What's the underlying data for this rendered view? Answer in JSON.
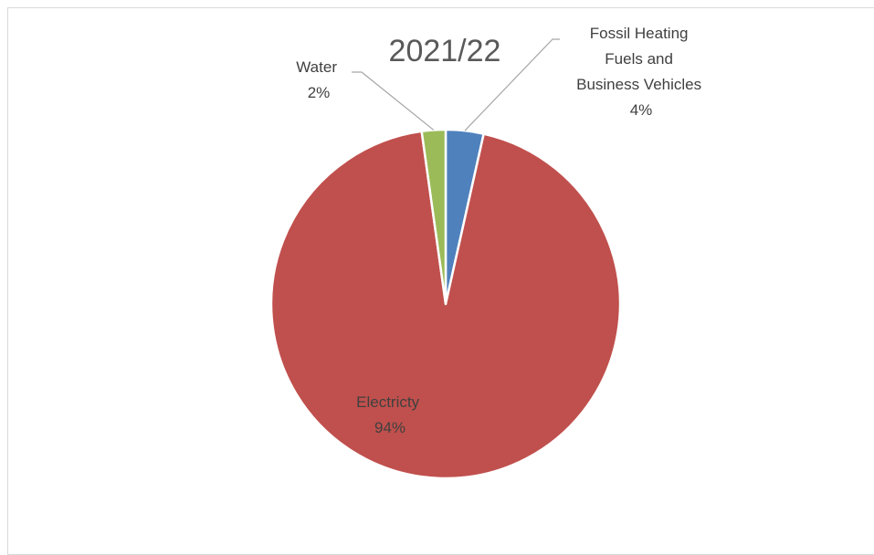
{
  "chart_data": {
    "type": "pie",
    "title": "2021/22",
    "slices": [
      {
        "label_lines": [
          "Fossil Heating",
          "Fuels and",
          "Business Vehicles"
        ],
        "value_text": "4%",
        "value": 3.5,
        "color": "#4F81BD"
      },
      {
        "label_lines": [
          "Electricty"
        ],
        "value_text": "94%",
        "value": 94.3,
        "color": "#C0504D"
      },
      {
        "label_lines": [
          "Water"
        ],
        "value_text": "2%",
        "value": 2.2,
        "color": "#9BBB59"
      }
    ],
    "start_angle_deg": 0,
    "direction": "clockwise",
    "legend": "none",
    "leader_lines": true
  }
}
